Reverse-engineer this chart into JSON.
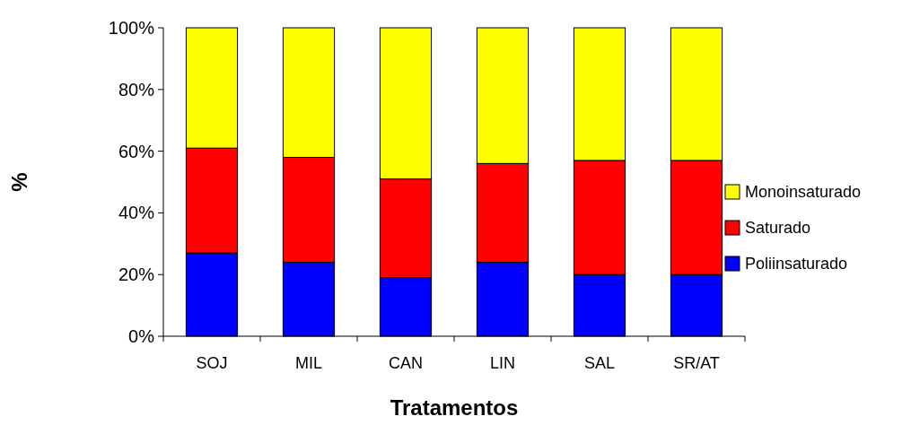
{
  "chart_data": {
    "type": "bar",
    "stacked": true,
    "xlabel": "Tratamentos",
    "ylabel": "%",
    "categories": [
      "SOJ",
      "MIL",
      "CAN",
      "LIN",
      "SAL",
      "SR/AT"
    ],
    "series": [
      {
        "name": "Poliinsaturado",
        "color": "#0000ff",
        "values": [
          27,
          24,
          19,
          24,
          20,
          20
        ]
      },
      {
        "name": "Saturado",
        "color": "#ff0000",
        "values": [
          34,
          34,
          32,
          32,
          37,
          37
        ]
      },
      {
        "name": "Monoinsaturado",
        "color": "#ffff00",
        "values": [
          39,
          42,
          49,
          44,
          43,
          43
        ]
      }
    ],
    "ylim": [
      0,
      100
    ],
    "yticks": [
      {
        "value": 0,
        "label": "0%"
      },
      {
        "value": 20,
        "label": "20%"
      },
      {
        "value": 40,
        "label": "40%"
      },
      {
        "value": 60,
        "label": "60%"
      },
      {
        "value": 80,
        "label": "80%"
      },
      {
        "value": 100,
        "label": "100%"
      }
    ],
    "legend": "right",
    "grid": false
  }
}
